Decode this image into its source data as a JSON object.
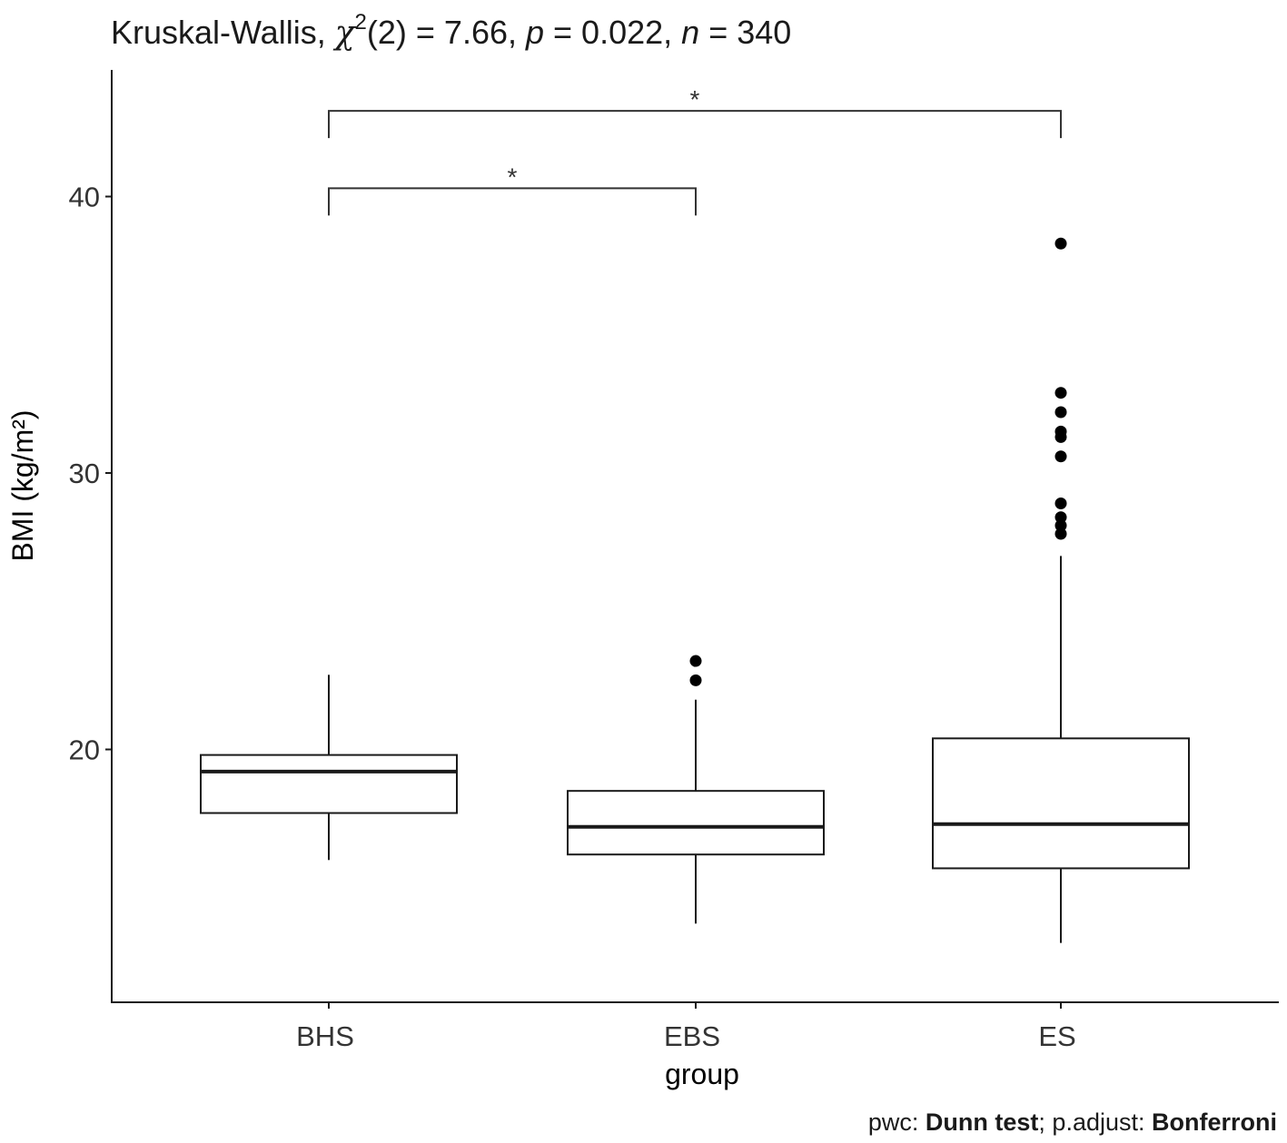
{
  "chart_data": {
    "type": "box",
    "title": {
      "prefix": "Kruskal-Wallis, ",
      "chi": "χ",
      "chi_sup": "2",
      "df_stat": "(2) = 7.66, ",
      "p_label": "p",
      "p_value": " = 0.022, ",
      "n_label": "n",
      "n_value": " = 340"
    },
    "xlabel": "group",
    "ylabel": "BMI (kg/m²)",
    "categories": [
      "BHS",
      "EBS",
      "ES"
    ],
    "ylim": [
      10.8,
      45
    ],
    "yticks": [
      20,
      30,
      40
    ],
    "ytick_labels": [
      "20",
      "30",
      "40"
    ],
    "boxes": [
      {
        "group": "BHS",
        "whisker_low": 16.0,
        "q1": 17.7,
        "median": 19.2,
        "q3": 19.8,
        "whisker_high": 22.7,
        "outliers": []
      },
      {
        "group": "EBS",
        "whisker_low": 13.7,
        "q1": 16.2,
        "median": 17.2,
        "q3": 18.5,
        "whisker_high": 21.8,
        "outliers": [
          23.2,
          22.5
        ]
      },
      {
        "group": "ES",
        "whisker_low": 13.0,
        "q1": 15.7,
        "median": 17.3,
        "q3": 20.4,
        "whisker_high": 27.0,
        "outliers": [
          38.3,
          32.9,
          32.2,
          31.5,
          31.3,
          30.6,
          28.9,
          28.4,
          28.1,
          27.8
        ]
      }
    ],
    "comparisons": [
      {
        "from": "BHS",
        "to": "EBS",
        "label": "*",
        "y": 40.3
      },
      {
        "from": "BHS",
        "to": "ES",
        "label": "*",
        "y": 43.1
      }
    ],
    "caption": {
      "pwc_label": "pwc: ",
      "pwc_method": "Dunn test",
      "adjust_label": "; p.adjust: ",
      "adjust_method": "Bonferroni"
    },
    "grid": false,
    "legend": "none",
    "colors": {
      "box_fill": "#ffffff",
      "box_stroke": "#1a1a1a",
      "axis": "#1a1a1a"
    }
  }
}
